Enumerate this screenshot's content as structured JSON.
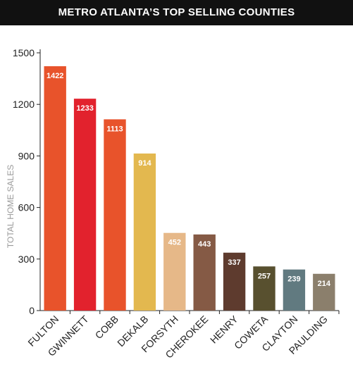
{
  "chart_data": {
    "type": "bar",
    "title": "METRO ATLANTA’S TOP SELLING COUNTIES",
    "ylabel": "TOTAL HOME SALES",
    "xlabel": "",
    "ylim": [
      0,
      1500
    ],
    "yticks": [
      0,
      300,
      600,
      900,
      1200,
      1500
    ],
    "grid": false,
    "categories": [
      "FULTON",
      "GWINNETT",
      "COBB",
      "DEKALB",
      "FORSYTH",
      "CHEROKEE",
      "HENRY",
      "COWETA",
      "CLAYTON",
      "PAULDING"
    ],
    "values": [
      1422,
      1233,
      1113,
      914,
      452,
      443,
      337,
      257,
      239,
      214
    ],
    "colors": [
      "#e8532b",
      "#e2222d",
      "#e8532b",
      "#e3b84f",
      "#e6b888",
      "#855a45",
      "#5e3b2e",
      "#58502f",
      "#617a80",
      "#8b7f6c"
    ]
  }
}
